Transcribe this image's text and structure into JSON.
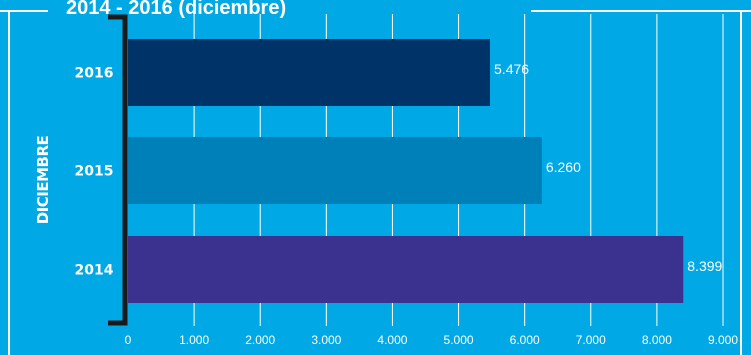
{
  "chart_data": {
    "type": "bar",
    "orientation": "horizontal",
    "title": "2014 - 2016 (diciembre)",
    "ylabel": "DICIEMBRE",
    "categories": [
      "2016",
      "2015",
      "2014"
    ],
    "values": [
      5476,
      6260,
      8399
    ],
    "value_labels": [
      "5.476",
      "6.260",
      "8.399"
    ],
    "bar_colors": [
      "#003468",
      "#0080b8",
      "#3b3290"
    ],
    "xlim": [
      0,
      9000
    ],
    "xticks": [
      0,
      1000,
      2000,
      3000,
      4000,
      5000,
      6000,
      7000,
      8000,
      9000
    ],
    "xtick_labels": [
      "0",
      "1.000",
      "2.000",
      "3.000",
      "4.000",
      "5.000",
      "6.000",
      "7.000",
      "8.000",
      "9.000"
    ],
    "grid": true,
    "legend": "none"
  },
  "colors": {
    "background": "#00a9e6",
    "text": "#ffffff",
    "bracket": "#1a1a1a"
  }
}
